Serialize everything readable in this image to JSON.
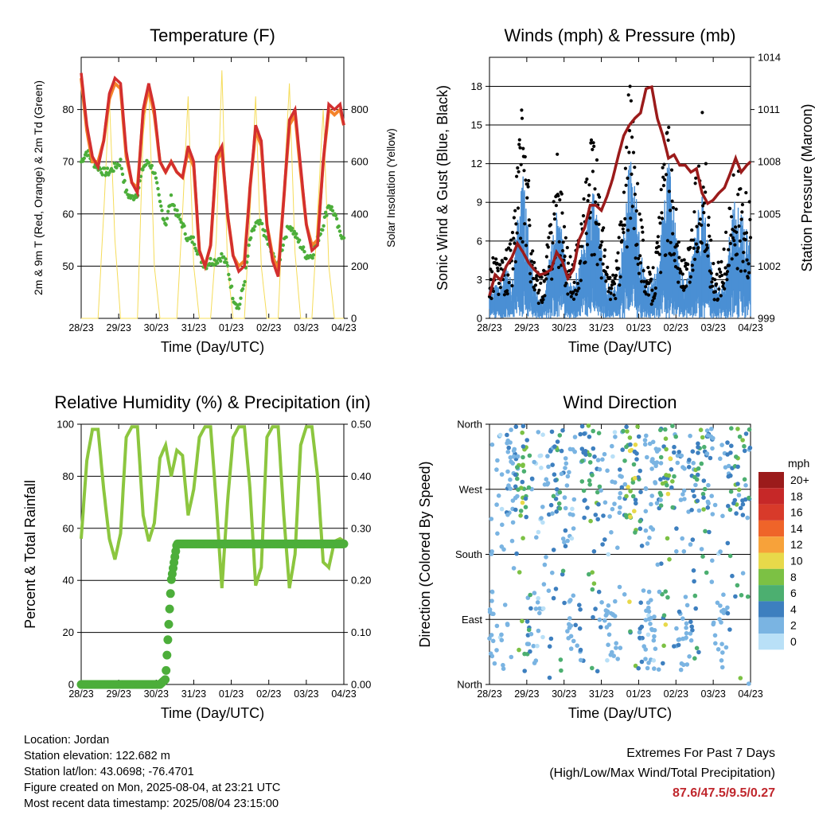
{
  "colors": {
    "temp2m": "#d32f2f",
    "temp9m": "#f4832a",
    "dewpoint": "#4cae3a",
    "solar": "#f5dc5a",
    "wind": "#4a8fd4",
    "gust": "#000000",
    "pressure": "#9b1b1b",
    "rh": "#8cc63f",
    "precip": "#4cae3a"
  },
  "x_ticks": [
    "28/23",
    "29/23",
    "30/23",
    "31/23",
    "01/23",
    "02/23",
    "03/23",
    "04/23"
  ],
  "chart_data": [
    {
      "type": "line",
      "title": "Temperature (F)",
      "xlabel": "Time (Day/UTC)",
      "ylabel": "2m & 9m T (Red, Orange) & 2m Td (Green)",
      "y2label": "Solar Insolation (Yellow)",
      "ylim": [
        40,
        90
      ],
      "y_ticks": [
        50,
        60,
        70,
        80
      ],
      "y2lim": [
        0,
        1000
      ],
      "y2_ticks": [
        0,
        200,
        400,
        600,
        800
      ],
      "x_ticks": [
        "28/23",
        "29/23",
        "30/23",
        "31/23",
        "01/23",
        "02/23",
        "03/23",
        "04/23"
      ],
      "x": [
        0,
        0.15,
        0.3,
        0.45,
        0.6,
        0.75,
        0.9,
        1.05,
        1.2,
        1.35,
        1.5,
        1.65,
        1.8,
        1.95,
        2.1,
        2.25,
        2.4,
        2.55,
        2.7,
        2.85,
        3.0,
        3.15,
        3.3,
        3.45,
        3.6,
        3.75,
        3.9,
        4.05,
        4.2,
        4.35,
        4.5,
        4.65,
        4.8,
        4.95,
        5.1,
        5.25,
        5.4,
        5.55,
        5.7,
        5.85,
        6.0,
        6.15,
        6.3,
        6.45,
        6.6,
        6.75,
        6.9,
        7.0
      ],
      "series": [
        {
          "key": "t2m",
          "values": [
            87,
            77,
            71,
            69,
            74,
            83,
            86,
            85,
            72,
            66,
            64,
            80,
            85,
            80,
            70,
            68,
            70,
            68,
            67,
            73,
            70,
            53,
            50,
            54,
            71,
            73,
            60,
            52,
            49,
            50,
            65,
            77,
            74,
            58,
            51,
            48,
            63,
            78,
            80,
            69,
            58,
            53,
            54,
            70,
            81,
            80,
            81,
            77
          ]
        },
        {
          "key": "t9m",
          "values": [
            86,
            76,
            70,
            70,
            74,
            82,
            85,
            84,
            71,
            66,
            65,
            79,
            84,
            79,
            70,
            68,
            70,
            68,
            67,
            72,
            69,
            53,
            50,
            54,
            70,
            72,
            60,
            52,
            50,
            51,
            65,
            76,
            73,
            58,
            52,
            49,
            63,
            77,
            79,
            68,
            58,
            54,
            55,
            70,
            80,
            79,
            80,
            77
          ]
        },
        {
          "key": "td2m",
          "values": [
            70,
            72,
            70,
            69,
            68,
            68,
            69,
            70,
            64,
            63,
            64,
            69,
            70,
            68,
            62,
            58,
            63,
            60,
            58,
            55,
            55,
            52,
            50,
            51,
            51,
            52,
            50,
            44,
            42,
            47,
            55,
            58,
            58,
            55,
            52,
            50,
            55,
            58,
            56,
            54,
            52,
            52,
            55,
            58,
            62,
            60,
            56,
            56
          ]
        },
        {
          "key": "solar",
          "values": [
            0,
            0,
            0,
            0,
            400,
            850,
            300,
            0,
            0,
            0,
            0,
            700,
            900,
            200,
            0,
            0,
            0,
            0,
            400,
            850,
            200,
            0,
            0,
            0,
            300,
            950,
            200,
            0,
            0,
            0,
            400,
            850,
            200,
            0,
            0,
            0,
            500,
            900,
            250,
            0,
            0,
            0,
            400,
            800,
            200,
            0,
            0,
            0
          ]
        }
      ]
    },
    {
      "type": "scatter",
      "title": "Winds (mph) & Pressure (mb)",
      "xlabel": "Time (Day/UTC)",
      "ylabel": "Sonic Wind & Gust (Blue, Black)",
      "y2label": "Station Pressure (Maroon)",
      "ylim": [
        0,
        20.25
      ],
      "y_ticks": [
        0,
        3,
        6,
        9,
        12,
        15,
        18
      ],
      "y2lim": [
        999,
        1014
      ],
      "y2_ticks": [
        999,
        1002,
        1005,
        1008,
        1011,
        1014
      ],
      "x_ticks": [
        "28/23",
        "29/23",
        "30/23",
        "31/23",
        "01/23",
        "02/23",
        "03/23",
        "04/23"
      ],
      "x": [
        0,
        0.15,
        0.3,
        0.45,
        0.6,
        0.75,
        0.9,
        1.05,
        1.2,
        1.35,
        1.5,
        1.65,
        1.8,
        1.95,
        2.1,
        2.25,
        2.4,
        2.55,
        2.7,
        2.85,
        3.0,
        3.15,
        3.3,
        3.45,
        3.6,
        3.75,
        3.9,
        4.05,
        4.2,
        4.35,
        4.5,
        4.65,
        4.8,
        4.95,
        5.1,
        5.25,
        5.4,
        5.55,
        5.7,
        5.85,
        6.0,
        6.15,
        6.3,
        6.45,
        6.6,
        6.75,
        6.9,
        7.0
      ],
      "series": [
        {
          "key": "wind",
          "values": [
            2,
            2,
            2,
            3,
            2,
            6,
            8,
            5,
            2,
            1,
            2,
            4,
            6,
            5,
            2,
            2,
            3,
            5,
            7,
            7,
            4,
            2,
            2,
            2,
            5,
            9,
            8,
            4,
            2,
            2,
            3,
            6,
            9,
            6,
            3,
            2,
            3,
            6,
            7,
            5,
            2,
            2,
            2,
            5,
            7,
            6,
            5,
            4
          ]
        },
        {
          "key": "gust",
          "values": [
            4,
            5,
            4,
            5,
            6,
            12,
            16,
            10,
            4,
            3,
            4,
            8,
            12,
            10,
            5,
            4,
            6,
            10,
            13,
            12,
            8,
            4,
            3,
            5,
            10,
            17,
            14,
            8,
            4,
            3,
            6,
            11,
            15,
            10,
            5,
            4,
            6,
            11,
            15,
            9,
            4,
            4,
            5,
            9,
            11,
            10,
            9,
            8
          ]
        },
        {
          "key": "pressure",
          "values": [
            1000.3,
            1001.5,
            1001.2,
            1002,
            1002.5,
            1003.3,
            1002.8,
            1002.2,
            1001.8,
            1001.5,
            1001.6,
            1001.8,
            1002.8,
            1002.3,
            1001.3,
            1001.8,
            1003.5,
            1004.2,
            1005.5,
            1005.5,
            1005.2,
            1006,
            1007,
            1008.3,
            1009.5,
            1010.1,
            1010.5,
            1010.8,
            1012.2,
            1012.3,
            1010.5,
            1009.5,
            1008.2,
            1008.4,
            1007.8,
            1007.8,
            1007.4,
            1007.6,
            1006.2,
            1005.6,
            1005.8,
            1006.2,
            1006.5,
            1007.3,
            1008.2,
            1007.4,
            1007.8,
            1008
          ]
        }
      ]
    },
    {
      "type": "line",
      "title": "Relative Humidity (%) & Precipitation (in)",
      "xlabel": "Time (Day/UTC)",
      "ylabel": "Percent & Total Rainfall",
      "ylim": [
        0,
        100
      ],
      "y_ticks": [
        0,
        20,
        40,
        60,
        80,
        100
      ],
      "y2lim": [
        0,
        0.5
      ],
      "y2_ticks": [
        "0.00",
        "0.10",
        "0.20",
        "0.30",
        "0.40",
        "0.50"
      ],
      "x_ticks": [
        "28/23",
        "29/23",
        "30/23",
        "31/23",
        "01/23",
        "02/23",
        "03/23",
        "04/23"
      ],
      "x": [
        0,
        0.15,
        0.3,
        0.45,
        0.6,
        0.75,
        0.9,
        1.05,
        1.2,
        1.35,
        1.5,
        1.65,
        1.8,
        1.95,
        2.1,
        2.25,
        2.4,
        2.55,
        2.7,
        2.85,
        3.0,
        3.15,
        3.3,
        3.45,
        3.6,
        3.75,
        3.9,
        4.05,
        4.2,
        4.35,
        4.5,
        4.65,
        4.8,
        4.95,
        5.1,
        5.25,
        5.4,
        5.55,
        5.7,
        5.85,
        6.0,
        6.15,
        6.3,
        6.45,
        6.6,
        6.75,
        6.9,
        7.0
      ],
      "series": [
        {
          "key": "rh",
          "values": [
            56,
            86,
            98,
            98,
            75,
            56,
            48,
            58,
            95,
            99,
            99,
            65,
            55,
            62,
            87,
            92,
            80,
            90,
            88,
            65,
            75,
            95,
            99,
            99,
            70,
            37,
            70,
            95,
            99,
            99,
            75,
            38,
            45,
            95,
            99,
            99,
            65,
            37,
            50,
            92,
            99,
            99,
            80,
            47,
            45,
            55,
            56,
            55
          ]
        },
        {
          "key": "precip",
          "values": [
            0,
            0,
            0,
            0,
            0,
            0,
            0,
            0,
            0,
            0,
            0,
            0,
            0,
            0,
            0,
            0.01,
            0.2,
            0.27,
            0.27,
            0.27,
            0.27,
            0.27,
            0.27,
            0.27,
            0.27,
            0.27,
            0.27,
            0.27,
            0.27,
            0.27,
            0.27,
            0.27,
            0.27,
            0.27,
            0.27,
            0.27,
            0.27,
            0.27,
            0.27,
            0.27,
            0.27,
            0.27,
            0.27,
            0.27,
            0.27,
            0.27,
            0.27,
            0.27
          ]
        }
      ]
    },
    {
      "type": "scatter",
      "title": "Wind Direction",
      "xlabel": "Time (Day/UTC)",
      "ylabel": "Direction (Colored By Speed)",
      "ylim": [
        0,
        360
      ],
      "y_ticks": [
        "North",
        "East",
        "South",
        "West",
        "North"
      ],
      "x_ticks": [
        "28/23",
        "29/23",
        "30/23",
        "31/23",
        "01/23",
        "02/23",
        "03/23",
        "04/23"
      ],
      "legend": {
        "title": "mph",
        "labels": [
          "20+",
          "18",
          "16",
          "14",
          "12",
          "10",
          "8",
          "6",
          "4",
          "2",
          "0"
        ],
        "colors": [
          "#9b1b1b",
          "#c62828",
          "#d83a2a",
          "#ef6429",
          "#f7a23a",
          "#e8d94a",
          "#7cc144",
          "#4caf70",
          "#3d7fbf",
          "#7ab4e2",
          "#b9e0f7"
        ]
      }
    }
  ],
  "footer": {
    "location": "Location: Jordan",
    "elevation": "Station elevation: 122.682 m",
    "latlon": "Station lat/lon: 43.0698; -76.4701",
    "created": "Figure created on Mon, 2025-08-04, at 23:21 UTC",
    "recent": "Most recent data timestamp: 2025/08/04 23:15:00",
    "extremes_title": "Extremes For Past 7 Days",
    "extremes_sub": "(High/Low/Max Wind/Total Precipitation)",
    "extremes_values": "87.6/47.5/9.5/0.27"
  }
}
